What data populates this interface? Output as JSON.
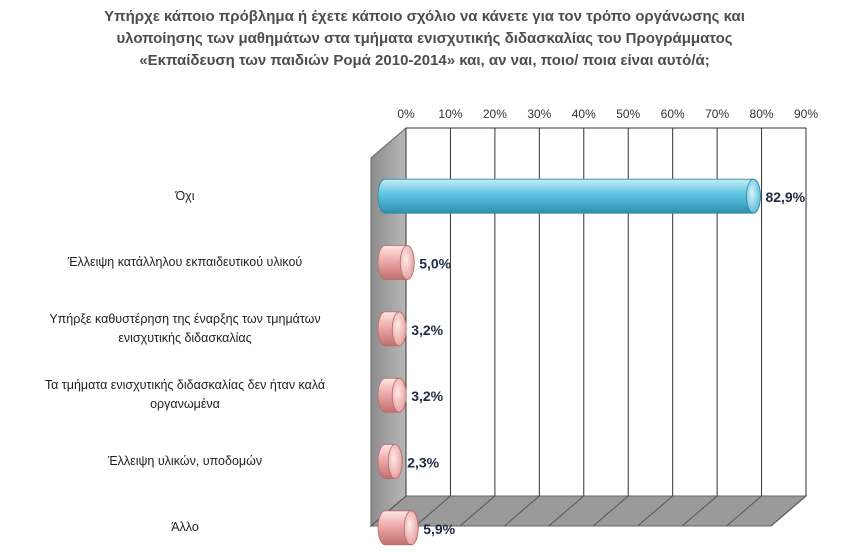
{
  "chart_data": {
    "type": "bar",
    "orientation": "horizontal",
    "title_lines": [
      "Υπήρχε κάποιο πρόβλημα ή έχετε κάποιο σχόλιο να κάνετε για τον τρόπο οργάνωσης και",
      "υλοποίησης των μαθημάτων στα τμήματα ενισχυτικής διδασκαλίας του Προγράμματος",
      "«Εκπαίδευση των παιδιών Ρομά 2010-2014» και, αν ναι, ποιο/ ποια είναι αυτό/ά;"
    ],
    "categories": [
      [
        "Όχι"
      ],
      [
        "Έλλειψη κατάλληλου εκπαιδευτικού υλικού"
      ],
      [
        "Υπήρξε καθυστέρηση της έναρξης των τμημάτων",
        "ενισχυτικής διδασκαλίας"
      ],
      [
        "Τα τμήματα ενισχυτικής διδασκαλίας δεν ήταν καλά",
        "οργανωμένα"
      ],
      [
        "Έλλειψη υλικών, υποδομών"
      ],
      [
        "Άλλο"
      ]
    ],
    "values": [
      82.9,
      5.0,
      3.2,
      3.2,
      2.3,
      5.9
    ],
    "value_labels": [
      "82,9%",
      "5,0%",
      "3,2%",
      "3,2%",
      "2,3%",
      "5,9%"
    ],
    "xlim": [
      0,
      90
    ],
    "x_ticks": [
      "0%",
      "10%",
      "20%",
      "30%",
      "40%",
      "50%",
      "60%",
      "70%",
      "80%",
      "90%"
    ],
    "x_axis_position": "top",
    "grid": true,
    "colors": {
      "highlight_bar": "#5bc0de",
      "other_bars": "#e8a0a0",
      "grid": "#333333",
      "floor": "#9a9a9a"
    }
  }
}
